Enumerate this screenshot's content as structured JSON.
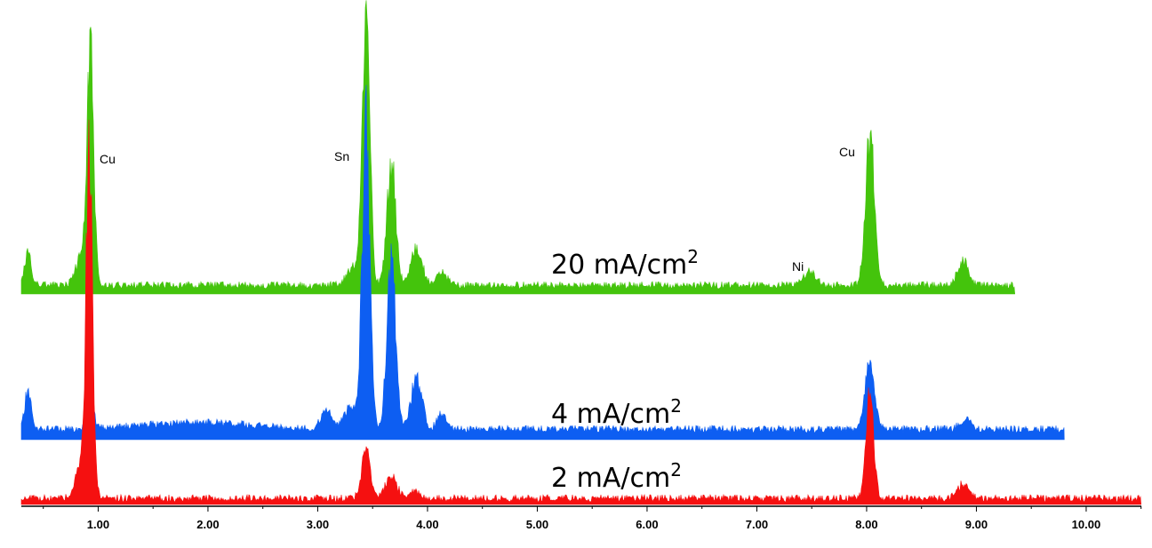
{
  "chart_data": {
    "type": "area",
    "title": "",
    "xlabel": "",
    "ylabel": "",
    "xlim": [
      0.3,
      10.5
    ],
    "grid": false,
    "x_ticks": [
      "1.00",
      "2.00",
      "3.00",
      "4.00",
      "5.00",
      "6.00",
      "7.00",
      "8.00",
      "9.00",
      "10.00"
    ],
    "x_tick_values": [
      1,
      2,
      3,
      4,
      5,
      6,
      7,
      8,
      9,
      10
    ],
    "peak_labels": [
      {
        "text": "Cu",
        "x": 0.93,
        "series": "20 mA/cm2"
      },
      {
        "text": "Sn",
        "x": 3.44,
        "series": "20 mA/cm2"
      },
      {
        "text": "Ni",
        "x": 7.48,
        "series": "20 mA/cm2"
      },
      {
        "text": "Cu",
        "x": 8.03,
        "series": "20 mA/cm2"
      }
    ],
    "series": [
      {
        "name": "20 mA/cm2",
        "label_main": "20 mA/cm",
        "label_sup": "2",
        "color": "#44c40c",
        "x_range": [
          0.3,
          9.35
        ],
        "baseline": 6,
        "noise": 4,
        "peaks": [
          {
            "x": 0.36,
            "h": 40,
            "w": 0.03
          },
          {
            "x": 0.85,
            "h": 40,
            "w": 0.05
          },
          {
            "x": 0.93,
            "h": 270,
            "w": 0.03
          },
          {
            "x": 3.32,
            "h": 20,
            "w": 0.06
          },
          {
            "x": 3.44,
            "h": 310,
            "w": 0.035
          },
          {
            "x": 3.67,
            "h": 150,
            "w": 0.04
          },
          {
            "x": 3.9,
            "h": 45,
            "w": 0.05
          },
          {
            "x": 4.13,
            "h": 15,
            "w": 0.05
          },
          {
            "x": 7.48,
            "h": 18,
            "w": 0.05
          },
          {
            "x": 8.03,
            "h": 185,
            "w": 0.04
          },
          {
            "x": 8.88,
            "h": 28,
            "w": 0.05
          }
        ]
      },
      {
        "name": "4 mA/cm2",
        "label_main": "4 mA/cm",
        "label_sup": "2",
        "color": "#0d5ef2",
        "x_range": [
          0.3,
          9.8
        ],
        "baseline": 8,
        "noise": 4,
        "peaks": [
          {
            "x": 0.36,
            "h": 45,
            "w": 0.03
          },
          {
            "x": 0.93,
            "h": 40,
            "w": 0.03
          },
          {
            "x": 1.9,
            "h": 8,
            "w": 0.5
          },
          {
            "x": 3.08,
            "h": 20,
            "w": 0.05
          },
          {
            "x": 3.3,
            "h": 25,
            "w": 0.06
          },
          {
            "x": 3.44,
            "h": 375,
            "w": 0.035
          },
          {
            "x": 3.67,
            "h": 200,
            "w": 0.04
          },
          {
            "x": 3.9,
            "h": 60,
            "w": 0.05
          },
          {
            "x": 4.13,
            "h": 18,
            "w": 0.04
          },
          {
            "x": 8.03,
            "h": 80,
            "w": 0.045
          },
          {
            "x": 8.9,
            "h": 12,
            "w": 0.05
          }
        ]
      },
      {
        "name": "2 mA/cm2",
        "label_main": "2 mA/cm",
        "label_sup": "2",
        "color": "#f51010",
        "x_range": [
          0.3,
          10.5
        ],
        "baseline": 3,
        "noise": 4,
        "peaks": [
          {
            "x": 0.87,
            "h": 55,
            "w": 0.06
          },
          {
            "x": 0.92,
            "h": 385,
            "w": 0.028
          },
          {
            "x": 3.44,
            "h": 60,
            "w": 0.04
          },
          {
            "x": 3.67,
            "h": 28,
            "w": 0.05
          },
          {
            "x": 3.88,
            "h": 10,
            "w": 0.05
          },
          {
            "x": 8.03,
            "h": 130,
            "w": 0.035
          },
          {
            "x": 8.88,
            "h": 18,
            "w": 0.05
          }
        ]
      }
    ]
  }
}
